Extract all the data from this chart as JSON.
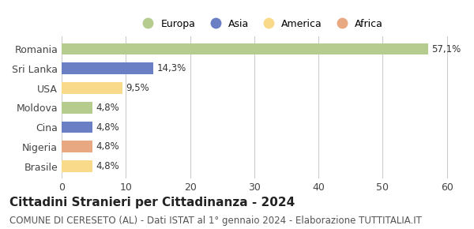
{
  "categories": [
    "Brasile",
    "Nigeria",
    "Cina",
    "Moldova",
    "USA",
    "Sri Lanka",
    "Romania"
  ],
  "values": [
    4.8,
    4.8,
    4.8,
    4.8,
    9.5,
    14.3,
    57.1
  ],
  "labels": [
    "4,8%",
    "4,8%",
    "4,8%",
    "4,8%",
    "9,5%",
    "14,3%",
    "57,1%"
  ],
  "colors": [
    "#f9d98a",
    "#e8a882",
    "#6b80c4",
    "#b5cc8e",
    "#f9d98a",
    "#6b80c4",
    "#b5cc8e"
  ],
  "continent": [
    "America",
    "Africa",
    "Asia",
    "Europa",
    "America",
    "Asia",
    "Europa"
  ],
  "legend_labels": [
    "Europa",
    "Asia",
    "America",
    "Africa"
  ],
  "legend_colors": [
    "#b5cc8e",
    "#6b80c4",
    "#f9d98a",
    "#e8a882"
  ],
  "title": "Cittadini Stranieri per Cittadinanza - 2024",
  "subtitle": "COMUNE DI CERESETO (AL) - Dati ISTAT al 1° gennaio 2024 - Elaborazione TUTTITALIA.IT",
  "xlim": [
    0,
    62
  ],
  "xticks": [
    0,
    10,
    20,
    30,
    40,
    50,
    60
  ],
  "background_color": "#ffffff",
  "grid_color": "#cccccc",
  "bar_height": 0.6,
  "title_fontsize": 11,
  "subtitle_fontsize": 8.5,
  "label_fontsize": 8.5,
  "tick_fontsize": 9,
  "legend_fontsize": 9
}
